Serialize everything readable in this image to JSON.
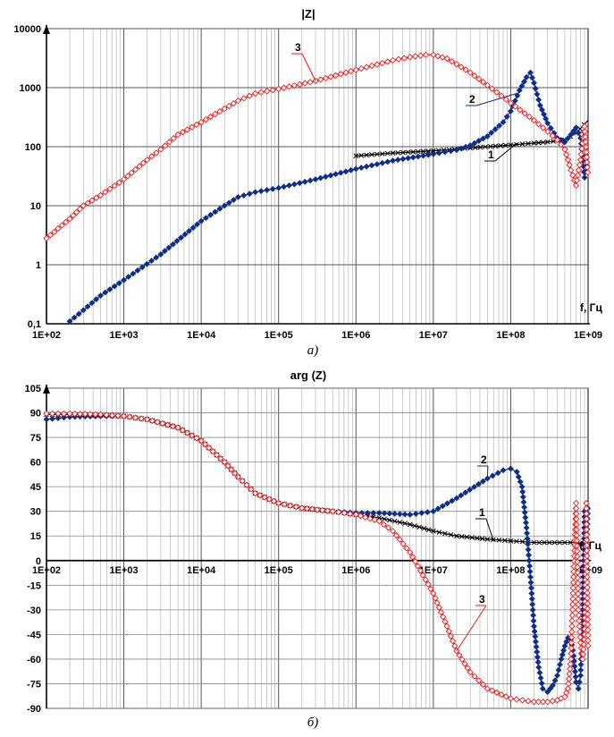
{
  "colors": {
    "series1": "#000000",
    "series2": "#0d2f8a",
    "series3": "#f01818",
    "grid": "#888888"
  },
  "chart_data": [
    {
      "type": "line",
      "title": "|Z|",
      "caption": "а)",
      "x_unit_label": "f, Гц",
      "x_scale": "log",
      "y_scale": "log",
      "xlim": [
        100,
        1000000000
      ],
      "ylim": [
        0.1,
        10000
      ],
      "x_tick_labels": [
        "1E+02",
        "1E+03",
        "1E+04",
        "1E+05",
        "1E+06",
        "1E+07",
        "1E+08",
        "1E+09"
      ],
      "y_tick_labels": [
        "0,1",
        "1",
        "10",
        "100",
        "1000",
        "10000"
      ],
      "grid": true,
      "series": [
        {
          "name": "1",
          "marker": "x",
          "x": [
            1000000.0,
            3000000.0,
            10000000.0,
            30000000.0,
            100000000.0,
            200000000.0,
            300000000.0,
            500000000.0,
            700000000.0,
            1000000000.0
          ],
          "y": [
            70,
            78,
            85,
            95,
            107,
            115,
            120,
            130,
            170,
            280
          ]
        },
        {
          "name": "2",
          "marker": "diamond",
          "x": [
            200,
            300,
            500,
            1000,
            3000,
            10000.0,
            20000.0,
            30000.0,
            50000.0,
            100000.0,
            300000.0,
            1000000.0,
            3000000.0,
            10000000.0,
            20000000.0,
            30000000.0,
            50000000.0,
            80000000.0,
            100000000.0,
            130000000.0,
            160000000.0,
            180000000.0,
            200000000.0,
            240000000.0,
            300000000.0,
            400000000.0,
            500000000.0,
            600000000.0,
            700000000.0,
            800000000.0,
            900000000.0,
            1000000000.0
          ],
          "y": [
            0.11,
            0.17,
            0.3,
            0.55,
            1.5,
            5.5,
            10,
            14,
            17,
            20,
            28,
            42,
            58,
            75,
            88,
            105,
            150,
            260,
            400,
            900,
            1500,
            1800,
            1200,
            500,
            250,
            140,
            120,
            160,
            210,
            140,
            30,
            60
          ]
        },
        {
          "name": "3",
          "marker": "diamond-open",
          "x": [
            100,
            200,
            300,
            500,
            1000,
            2000,
            3000,
            5000,
            10000.0,
            20000.0,
            30000.0,
            50000.0,
            100000.0,
            300000.0,
            1000000.0,
            3000000.0,
            5000000.0,
            8000000.0,
            10000000.0,
            15000000.0,
            20000000.0,
            30000000.0,
            50000000.0,
            100000000.0,
            200000000.0,
            300000000.0,
            400000000.0,
            500000000.0,
            600000000.0,
            700000000.0,
            800000000.0,
            900000000.0,
            1000000000.0
          ],
          "y": [
            2.8,
            6,
            10,
            15,
            28,
            60,
            90,
            160,
            260,
            440,
            600,
            800,
            950,
            1300,
            2000,
            2900,
            3300,
            3600,
            3600,
            3100,
            2500,
            1800,
            1100,
            550,
            280,
            180,
            130,
            90,
            40,
            22,
            60,
            220,
            30
          ]
        }
      ]
    },
    {
      "type": "line",
      "title": "arg (Z)",
      "caption": "б)",
      "x_unit_label": "f, Гц",
      "x_scale": "log",
      "y_scale": "linear",
      "xlim": [
        100,
        1000000000
      ],
      "ylim": [
        -90,
        105
      ],
      "x_tick_labels": [
        "1E+02",
        "1E+03",
        "1E+04",
        "1E+05",
        "1E+06",
        "1E+07",
        "1E+08",
        "1E+09"
      ],
      "y_tick_labels": [
        "105",
        "90",
        "75",
        "60",
        "45",
        "30",
        "15",
        "0",
        "-15",
        "-30",
        "-45",
        "-60",
        "-75",
        "-90"
      ],
      "grid": true,
      "series": [
        {
          "name": "1",
          "marker": "x",
          "x": [
            100,
            200,
            500,
            1000,
            2000,
            5000,
            10000.0,
            20000.0,
            30000.0,
            50000.0,
            100000.0,
            200000.0,
            500000.0,
            1000000.0,
            2000000.0,
            5000000.0,
            10000000.0,
            20000000.0,
            50000000.0,
            100000000.0,
            200000000.0,
            500000000.0,
            700000000.0,
            800000000.0,
            900000000.0,
            1000000000.0
          ],
          "y": [
            89,
            89,
            88.5,
            88,
            86,
            81,
            73,
            60,
            51,
            41,
            35,
            32,
            30,
            28,
            26,
            22,
            18,
            15,
            13,
            12,
            11,
            11,
            11,
            10,
            8,
            10
          ]
        },
        {
          "name": "2",
          "label_text": "2",
          "marker": "diamond",
          "x": [
            100,
            200,
            500,
            1000,
            2000,
            5000,
            10000.0,
            20000.0,
            30000.0,
            50000.0,
            100000.0,
            200000.0,
            500000.0,
            1000000.0,
            2000000.0,
            5000000.0,
            10000000.0,
            20000000.0,
            50000000.0,
            80000000.0,
            100000000.0,
            120000000.0,
            140000000.0,
            160000000.0,
            180000000.0,
            200000000.0,
            230000000.0,
            260000000.0,
            300000000.0,
            350000000.0,
            400000000.0,
            450000000.0,
            500000000.0,
            550000000.0,
            600000000.0,
            650000000.0,
            700000000.0,
            750000000.0,
            800000000.0,
            850000000.0,
            900000000.0,
            950000000.0,
            1000000000.0
          ],
          "y": [
            86,
            87.5,
            88,
            88,
            86,
            81,
            73,
            60,
            51,
            41,
            35,
            32,
            30,
            29,
            29,
            28,
            30,
            38,
            50,
            55,
            56,
            54,
            45,
            20,
            -10,
            -40,
            -65,
            -78,
            -80,
            -76,
            -70,
            -60,
            -52,
            -47,
            -48,
            -58,
            -74,
            -78,
            -70,
            -30,
            30,
            0,
            35
          ]
        },
        {
          "name": "3",
          "marker": "diamond-open",
          "x": [
            100,
            200,
            500,
            1000,
            2000,
            5000,
            10000.0,
            20000.0,
            30000.0,
            50000.0,
            100000.0,
            200000.0,
            500000.0,
            1000000.0,
            2000000.0,
            3000000.0,
            5000000.0,
            10000000.0,
            15000000.0,
            20000000.0,
            30000000.0,
            50000000.0,
            100000000.0,
            200000000.0,
            300000000.0,
            400000000.0,
            500000000.0,
            550000000.0,
            600000000.0,
            650000000.0,
            700000000.0,
            750000000.0,
            800000000.0,
            850000000.0,
            900000000.0,
            950000000.0,
            1000000000.0
          ],
          "y": [
            89.5,
            89.5,
            89,
            88,
            86,
            81,
            73,
            60,
            51,
            41,
            35,
            32,
            30,
            28,
            24,
            18,
            5,
            -20,
            -40,
            -55,
            -68,
            -78,
            -84,
            -86,
            -86,
            -85,
            -83,
            -78,
            -60,
            -10,
            35,
            -30,
            -50,
            -60,
            -45,
            35,
            -55
          ]
        }
      ]
    }
  ]
}
